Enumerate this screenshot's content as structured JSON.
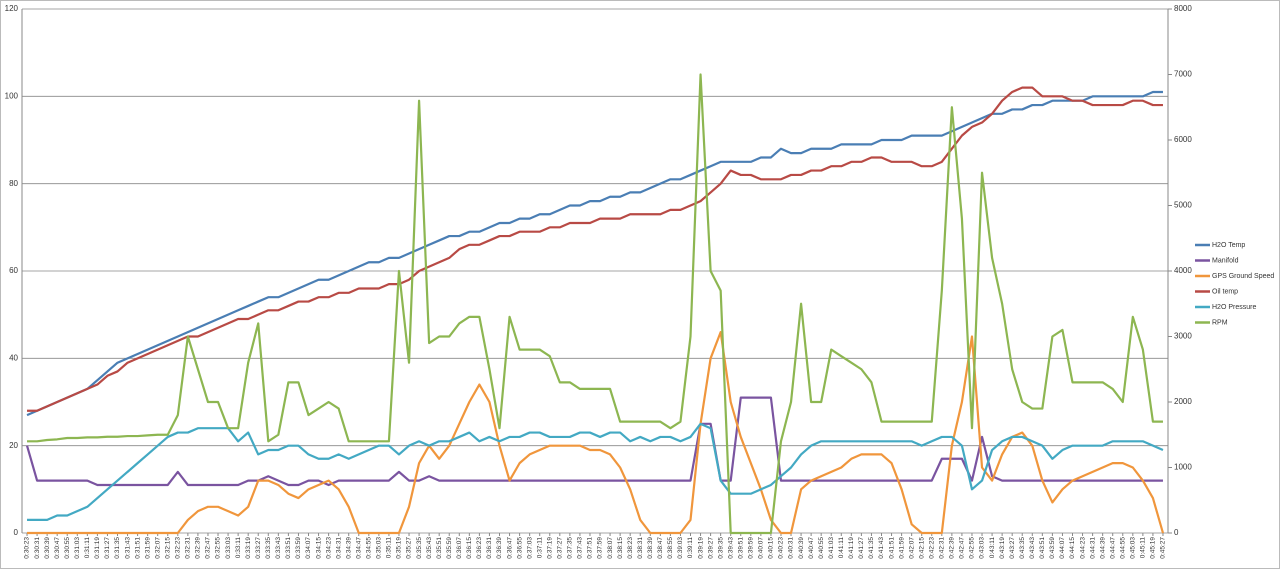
{
  "chart_data": {
    "type": "line",
    "categories": [
      "0:30:23",
      "0:30:31",
      "0:30:39",
      "0:30:47",
      "0:30:55",
      "0:31:03",
      "0:31:11",
      "0:31:19",
      "0:31:27",
      "0:31:35",
      "0:31:43",
      "0:31:51",
      "0:31:59",
      "0:32:07",
      "0:32:15",
      "0:32:23",
      "0:32:31",
      "0:32:39",
      "0:32:47",
      "0:32:55",
      "0:33:03",
      "0:33:11",
      "0:33:19",
      "0:33:27",
      "0:33:35",
      "0:33:43",
      "0:33:51",
      "0:33:59",
      "0:34:07",
      "0:34:15",
      "0:34:23",
      "0:34:31",
      "0:34:39",
      "0:34:47",
      "0:34:55",
      "0:35:03",
      "0:35:11",
      "0:35:19",
      "0:35:27",
      "0:35:35",
      "0:35:43",
      "0:35:51",
      "0:35:59",
      "0:36:07",
      "0:36:15",
      "0:36:23",
      "0:36:31",
      "0:36:39",
      "0:36:47",
      "0:36:55",
      "0:37:03",
      "0:37:11",
      "0:37:19",
      "0:37:27",
      "0:37:35",
      "0:37:43",
      "0:37:51",
      "0:37:59",
      "0:38:07",
      "0:38:15",
      "0:38:23",
      "0:38:31",
      "0:38:39",
      "0:38:47",
      "0:38:55",
      "0:39:03",
      "0:39:11",
      "0:39:19",
      "0:39:27",
      "0:39:35",
      "0:39:43",
      "0:39:51",
      "0:39:59",
      "0:40:07",
      "0:40:15",
      "0:40:23",
      "0:40:31",
      "0:40:39",
      "0:40:47",
      "0:40:55",
      "0:41:03",
      "0:41:11",
      "0:41:19",
      "0:41:27",
      "0:41:35",
      "0:41:43",
      "0:41:51",
      "0:41:59",
      "0:42:07",
      "0:42:15",
      "0:42:23",
      "0:42:31",
      "0:42:39",
      "0:42:47",
      "0:42:55",
      "0:43:03",
      "0:43:11",
      "0:43:19",
      "0:43:27",
      "0:43:35",
      "0:43:43",
      "0:43:51",
      "0:43:59",
      "0:44:07",
      "0:44:15",
      "0:44:23",
      "0:44:31",
      "0:44:39",
      "0:44:47",
      "0:44:55",
      "0:45:03",
      "0:45:11",
      "0:45:19",
      "0:45:27"
    ],
    "series": [
      {
        "name": "H2O Temp",
        "color": "#4a7eb4",
        "values": [
          27,
          28,
          29,
          30,
          31,
          32,
          33,
          35,
          37,
          39,
          40,
          41,
          42,
          43,
          44,
          45,
          46,
          47,
          48,
          49,
          50,
          51,
          52,
          53,
          54,
          54,
          55,
          56,
          57,
          58,
          58,
          59,
          60,
          61,
          62,
          62,
          63,
          63,
          64,
          65,
          66,
          67,
          68,
          68,
          69,
          69,
          70,
          71,
          71,
          72,
          72,
          73,
          73,
          74,
          75,
          75,
          76,
          76,
          77,
          77,
          78,
          78,
          79,
          80,
          81,
          81,
          82,
          83,
          84,
          85,
          85,
          85,
          85,
          86,
          86,
          88,
          87,
          87,
          88,
          88,
          88,
          89,
          89,
          89,
          89,
          90,
          90,
          90,
          91,
          91,
          91,
          91,
          92,
          93,
          94,
          95,
          96,
          96,
          97,
          97,
          98,
          98,
          99,
          99,
          99,
          99,
          100,
          100,
          100,
          100,
          100,
          100,
          101,
          101
        ]
      },
      {
        "name": "Manifold",
        "color": "#7a54a0",
        "values": [
          20,
          12,
          12,
          12,
          12,
          12,
          12,
          11,
          11,
          11,
          11,
          11,
          11,
          11,
          11,
          14,
          11,
          11,
          11,
          11,
          11,
          11,
          12,
          12,
          13,
          12,
          11,
          11,
          12,
          12,
          11,
          12,
          12,
          12,
          12,
          12,
          12,
          14,
          12,
          12,
          13,
          12,
          12,
          12,
          12,
          12,
          12,
          12,
          12,
          12,
          12,
          12,
          12,
          12,
          12,
          12,
          12,
          12,
          12,
          12,
          12,
          12,
          12,
          12,
          12,
          12,
          12,
          25,
          25,
          12,
          12,
          31,
          31,
          31,
          31,
          12,
          12,
          12,
          12,
          12,
          12,
          12,
          12,
          12,
          12,
          12,
          12,
          12,
          12,
          12,
          12,
          17,
          17,
          17,
          12,
          22,
          13,
          12,
          12,
          12,
          12,
          12,
          12,
          12,
          12,
          12,
          12,
          12,
          12,
          12,
          12,
          12,
          12,
          12
        ]
      },
      {
        "name": "GPS Ground Speed",
        "color": "#f0963c",
        "values": [
          0,
          0,
          0,
          0,
          0,
          0,
          0,
          0,
          0,
          0,
          0,
          0,
          0,
          0,
          0,
          0,
          3,
          5,
          6,
          6,
          5,
          4,
          6,
          12,
          12,
          11,
          9,
          8,
          10,
          11,
          12,
          10,
          6,
          0,
          0,
          0,
          0,
          0,
          6,
          16,
          20,
          17,
          20,
          25,
          30,
          34,
          30,
          20,
          12,
          16,
          18,
          19,
          20,
          20,
          20,
          20,
          19,
          19,
          18,
          15,
          10,
          3,
          0,
          0,
          0,
          0,
          3,
          25,
          40,
          46,
          30,
          22,
          16,
          10,
          3,
          0,
          0,
          10,
          12,
          13,
          14,
          15,
          17,
          18,
          18,
          18,
          16,
          10,
          2,
          0,
          0,
          0,
          20,
          30,
          45,
          15,
          12,
          18,
          22,
          23,
          20,
          12,
          7,
          10,
          12,
          13,
          14,
          15,
          16,
          16,
          15,
          12,
          8,
          0
        ]
      },
      {
        "name": "Oil temp",
        "color": "#b84a45",
        "values": [
          28,
          28,
          29,
          30,
          31,
          32,
          33,
          34,
          36,
          37,
          39,
          40,
          41,
          42,
          43,
          44,
          45,
          45,
          46,
          47,
          48,
          49,
          49,
          50,
          51,
          51,
          52,
          53,
          53,
          54,
          54,
          55,
          55,
          56,
          56,
          56,
          57,
          57,
          58,
          60,
          61,
          62,
          63,
          65,
          66,
          66,
          67,
          68,
          68,
          69,
          69,
          69,
          70,
          70,
          71,
          71,
          71,
          72,
          72,
          72,
          73,
          73,
          73,
          73,
          74,
          74,
          75,
          76,
          78,
          80,
          83,
          82,
          82,
          81,
          81,
          81,
          82,
          82,
          83,
          83,
          84,
          84,
          85,
          85,
          86,
          86,
          85,
          85,
          85,
          84,
          84,
          85,
          88,
          91,
          93,
          94,
          96,
          99,
          101,
          102,
          102,
          100,
          100,
          100,
          99,
          99,
          98,
          98,
          98,
          98,
          99,
          99,
          98,
          98
        ]
      },
      {
        "name": "H2O Pressure",
        "color": "#43a9c3",
        "values": [
          3,
          3,
          3,
          4,
          4,
          5,
          6,
          8,
          10,
          12,
          14,
          16,
          18,
          20,
          22,
          23,
          23,
          24,
          24,
          24,
          24,
          21,
          23,
          18,
          19,
          19,
          20,
          20,
          18,
          17,
          17,
          18,
          17,
          18,
          19,
          20,
          20,
          18,
          20,
          21,
          20,
          21,
          21,
          22,
          23,
          21,
          22,
          21,
          22,
          22,
          23,
          23,
          22,
          22,
          22,
          23,
          23,
          22,
          23,
          23,
          21,
          22,
          21,
          22,
          22,
          21,
          22,
          25,
          24,
          12,
          9,
          9,
          9,
          10,
          11,
          13,
          15,
          18,
          20,
          21,
          21,
          21,
          21,
          21,
          21,
          21,
          21,
          21,
          21,
          20,
          21,
          22,
          22,
          20,
          10,
          12,
          19,
          21,
          22,
          22,
          21,
          20,
          17,
          19,
          20,
          20,
          20,
          20,
          21,
          21,
          21,
          21,
          20,
          19
        ]
      },
      {
        "name": "RPM",
        "color": "#8db651",
        "axis": "y2",
        "values": [
          1400,
          1400,
          1420,
          1430,
          1450,
          1450,
          1460,
          1460,
          1470,
          1470,
          1480,
          1480,
          1490,
          1500,
          1500,
          1800,
          3000,
          2500,
          2000,
          2000,
          1600,
          1600,
          2600,
          3200,
          1400,
          1500,
          2300,
          2300,
          1800,
          1900,
          2000,
          1900,
          1400,
          1400,
          1400,
          1400,
          1400,
          4000,
          2600,
          6600,
          2900,
          3000,
          3000,
          3200,
          3300,
          3300,
          2500,
          1600,
          3300,
          2800,
          2800,
          2800,
          2700,
          2300,
          2300,
          2200,
          2200,
          2200,
          2200,
          1700,
          1700,
          1700,
          1700,
          1700,
          1600,
          1700,
          3000,
          7000,
          4000,
          3700,
          0,
          0,
          0,
          0,
          0,
          1400,
          2000,
          3500,
          2000,
          2000,
          2800,
          2700,
          2600,
          2500,
          2300,
          1700,
          1700,
          1700,
          1700,
          1700,
          1700,
          3700,
          6500,
          4800,
          1600,
          5500,
          4200,
          3500,
          2500,
          2000,
          1900,
          1900,
          3000,
          3100,
          2300,
          2300,
          2300,
          2300,
          2200,
          2000,
          3300,
          2800,
          1700,
          1700
        ]
      }
    ],
    "ylim": [
      0,
      120
    ],
    "yticks": [
      0,
      20,
      40,
      60,
      80,
      100,
      120
    ],
    "y2lim": [
      0,
      8000
    ],
    "y2ticks": [
      0,
      1000,
      2000,
      3000,
      4000,
      5000,
      6000,
      7000,
      8000
    ],
    "grid": true,
    "legend": "right"
  }
}
